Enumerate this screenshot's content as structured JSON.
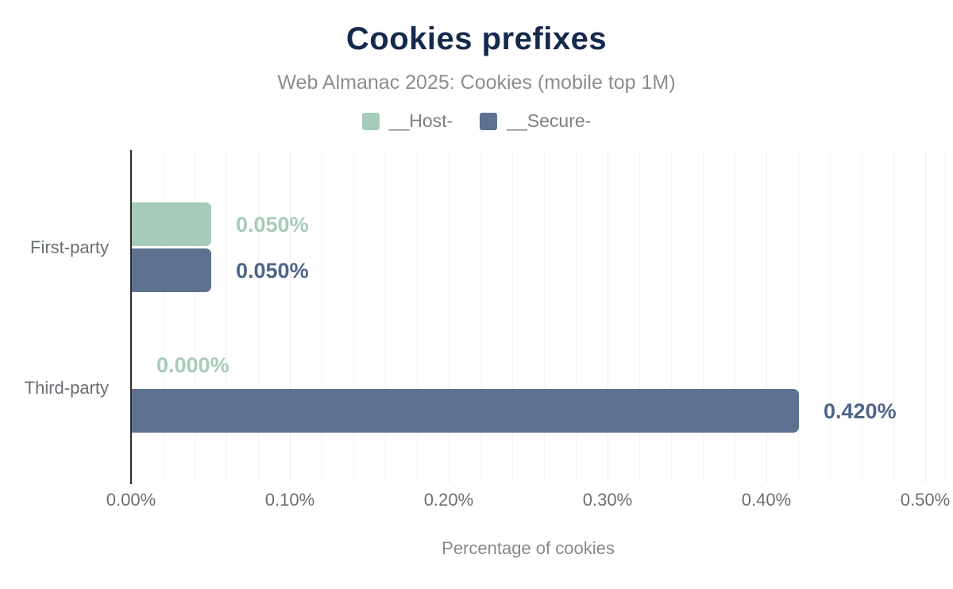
{
  "chart_data": {
    "type": "bar",
    "orientation": "horizontal",
    "title": "Cookies prefixes",
    "subtitle": "Web Almanac 2025: Cookies (mobile top 1M)",
    "xlabel": "Percentage of cookies",
    "categories": [
      "First-party",
      "Third-party"
    ],
    "series": [
      {
        "name": "__Host-",
        "color": "#a7cbb9",
        "label_color": "#a7cbb9",
        "values": [
          0.05,
          0.0
        ],
        "value_labels": [
          "0.050%",
          "0.000%"
        ]
      },
      {
        "name": "__Secure-",
        "color": "#5e7190",
        "label_color": "#4e6489",
        "values": [
          0.05,
          0.42
        ],
        "value_labels": [
          "0.050%",
          "0.420%"
        ]
      }
    ],
    "xlim": [
      0,
      0.5
    ],
    "x_ticks": [
      "0.00%",
      "0.10%",
      "0.20%",
      "0.30%",
      "0.40%",
      "0.50%"
    ],
    "x_tick_values": [
      0.0,
      0.1,
      0.2,
      0.3,
      0.4,
      0.5
    ],
    "grid": true,
    "legend_position": "top",
    "theme": {
      "title_color": "#15294d",
      "subtitle_color": "#8a8e92",
      "axis_text_color": "#6a6f74",
      "axis_title_color": "#85898d",
      "axis_line_color": "#2b2b2b",
      "gridline_color": "#f0f0f0",
      "background": "#ffffff"
    }
  }
}
